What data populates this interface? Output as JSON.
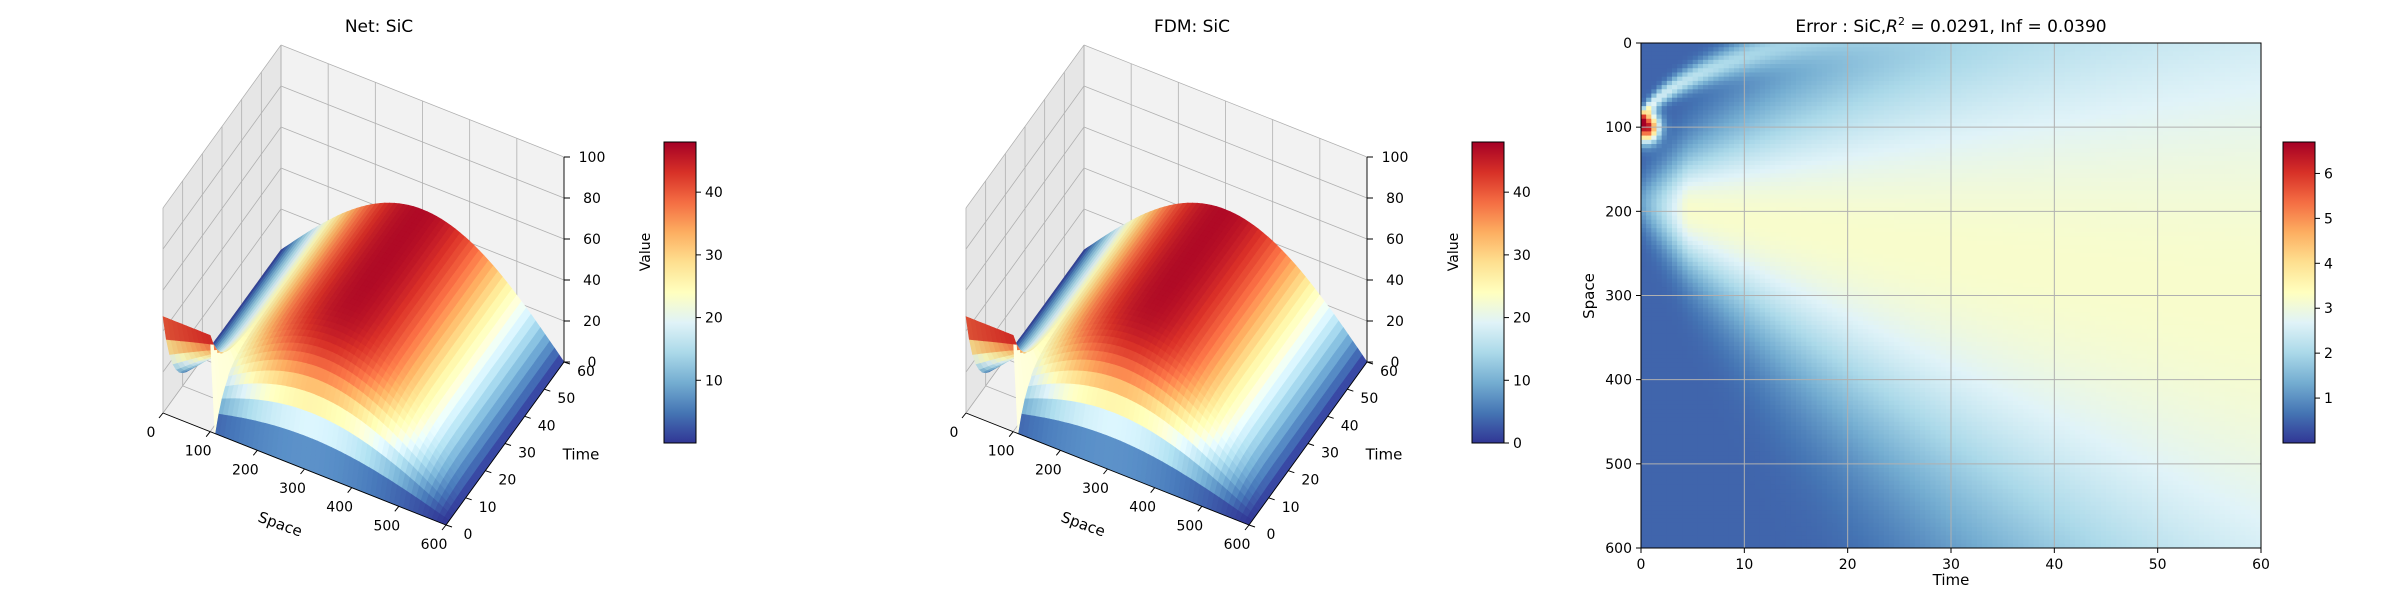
{
  "colors": {
    "colormap_RdYlBu_r": [
      "#313695",
      "#4575b4",
      "#74add1",
      "#abd9e9",
      "#e0f3f8",
      "#ffffbf",
      "#fee090",
      "#fdae61",
      "#f46d43",
      "#d73027",
      "#a50026"
    ],
    "grid": "#b0b0b0",
    "pane_left": "#e6e6e6",
    "pane_back": "#f2f2f2",
    "pane_floor": "#f0f0f0"
  },
  "chart_data": [
    {
      "type": "surface3d",
      "title": "Net: SiC",
      "xlabel": "Space",
      "ylabel": "Time",
      "zlabel": "",
      "x_range": [
        0,
        600
      ],
      "y_range": [
        0,
        60
      ],
      "z_range": [
        0,
        100
      ],
      "x_ticks": [
        "0",
        "100",
        "200",
        "300",
        "400",
        "500",
        "600"
      ],
      "y_ticks": [
        "0",
        "10",
        "20",
        "30",
        "40",
        "50",
        "60"
      ],
      "z_ticks": [
        "0",
        "20",
        "40",
        "60",
        "80",
        "100"
      ],
      "surface": {
        "description": "heated region at Space 0-100 spreading over time",
        "initial_peak": 47,
        "initial_band": [
          0,
          100
        ],
        "steady_max": 47
      },
      "colorbar": {
        "label": "Value",
        "min": 0,
        "max": 48,
        "ticks": [
          "10",
          "20",
          "30",
          "40"
        ]
      },
      "grid": true
    },
    {
      "type": "surface3d",
      "title": "FDM: SiC",
      "xlabel": "Space",
      "ylabel": "Time",
      "zlabel": "",
      "x_range": [
        0,
        600
      ],
      "y_range": [
        0,
        60
      ],
      "z_range": [
        0,
        100
      ],
      "x_ticks": [
        "0",
        "100",
        "200",
        "300",
        "400",
        "500",
        "600"
      ],
      "y_ticks": [
        "0",
        "10",
        "20",
        "30",
        "40",
        "50",
        "60"
      ],
      "z_ticks": [
        "0",
        "20",
        "40",
        "60",
        "80",
        "100"
      ],
      "surface": {
        "description": "heated region at Space 0-100 spreading over time",
        "initial_peak": 47,
        "initial_band": [
          0,
          100
        ],
        "steady_max": 47
      },
      "colorbar": {
        "label": "Value",
        "min": 0,
        "max": 48,
        "ticks": [
          "0",
          "10",
          "20",
          "30",
          "40"
        ]
      },
      "grid": true
    },
    {
      "type": "heatmap",
      "title_prefix": "Error : SiC,",
      "title_r2_symbol": "R",
      "title_r2_exp": "2",
      "title_suffix": " = 0.0291, Inf = 0.0390",
      "xlabel": "Time",
      "ylabel": "Space",
      "x_range": [
        0,
        60
      ],
      "y_range": [
        0,
        600
      ],
      "y_inverted": true,
      "x_ticks": [
        "0",
        "10",
        "20",
        "30",
        "40",
        "50",
        "60"
      ],
      "y_ticks": [
        "0",
        "100",
        "200",
        "300",
        "400",
        "500",
        "600"
      ],
      "colorbar": {
        "min": 0,
        "max": 6.7,
        "ticks": [
          "1",
          "2",
          "3",
          "4",
          "5",
          "6"
        ]
      },
      "field": {
        "max_error": 6.7,
        "max_error_location": {
          "time": 0.5,
          "space": 100
        },
        "band_center_space": 190,
        "band_center_drift_per_time": 2.0,
        "band_width_start": 20,
        "band_width_growth": 6.2,
        "band_level": 2.7,
        "background_level": 0.5
      },
      "grid": true
    }
  ]
}
